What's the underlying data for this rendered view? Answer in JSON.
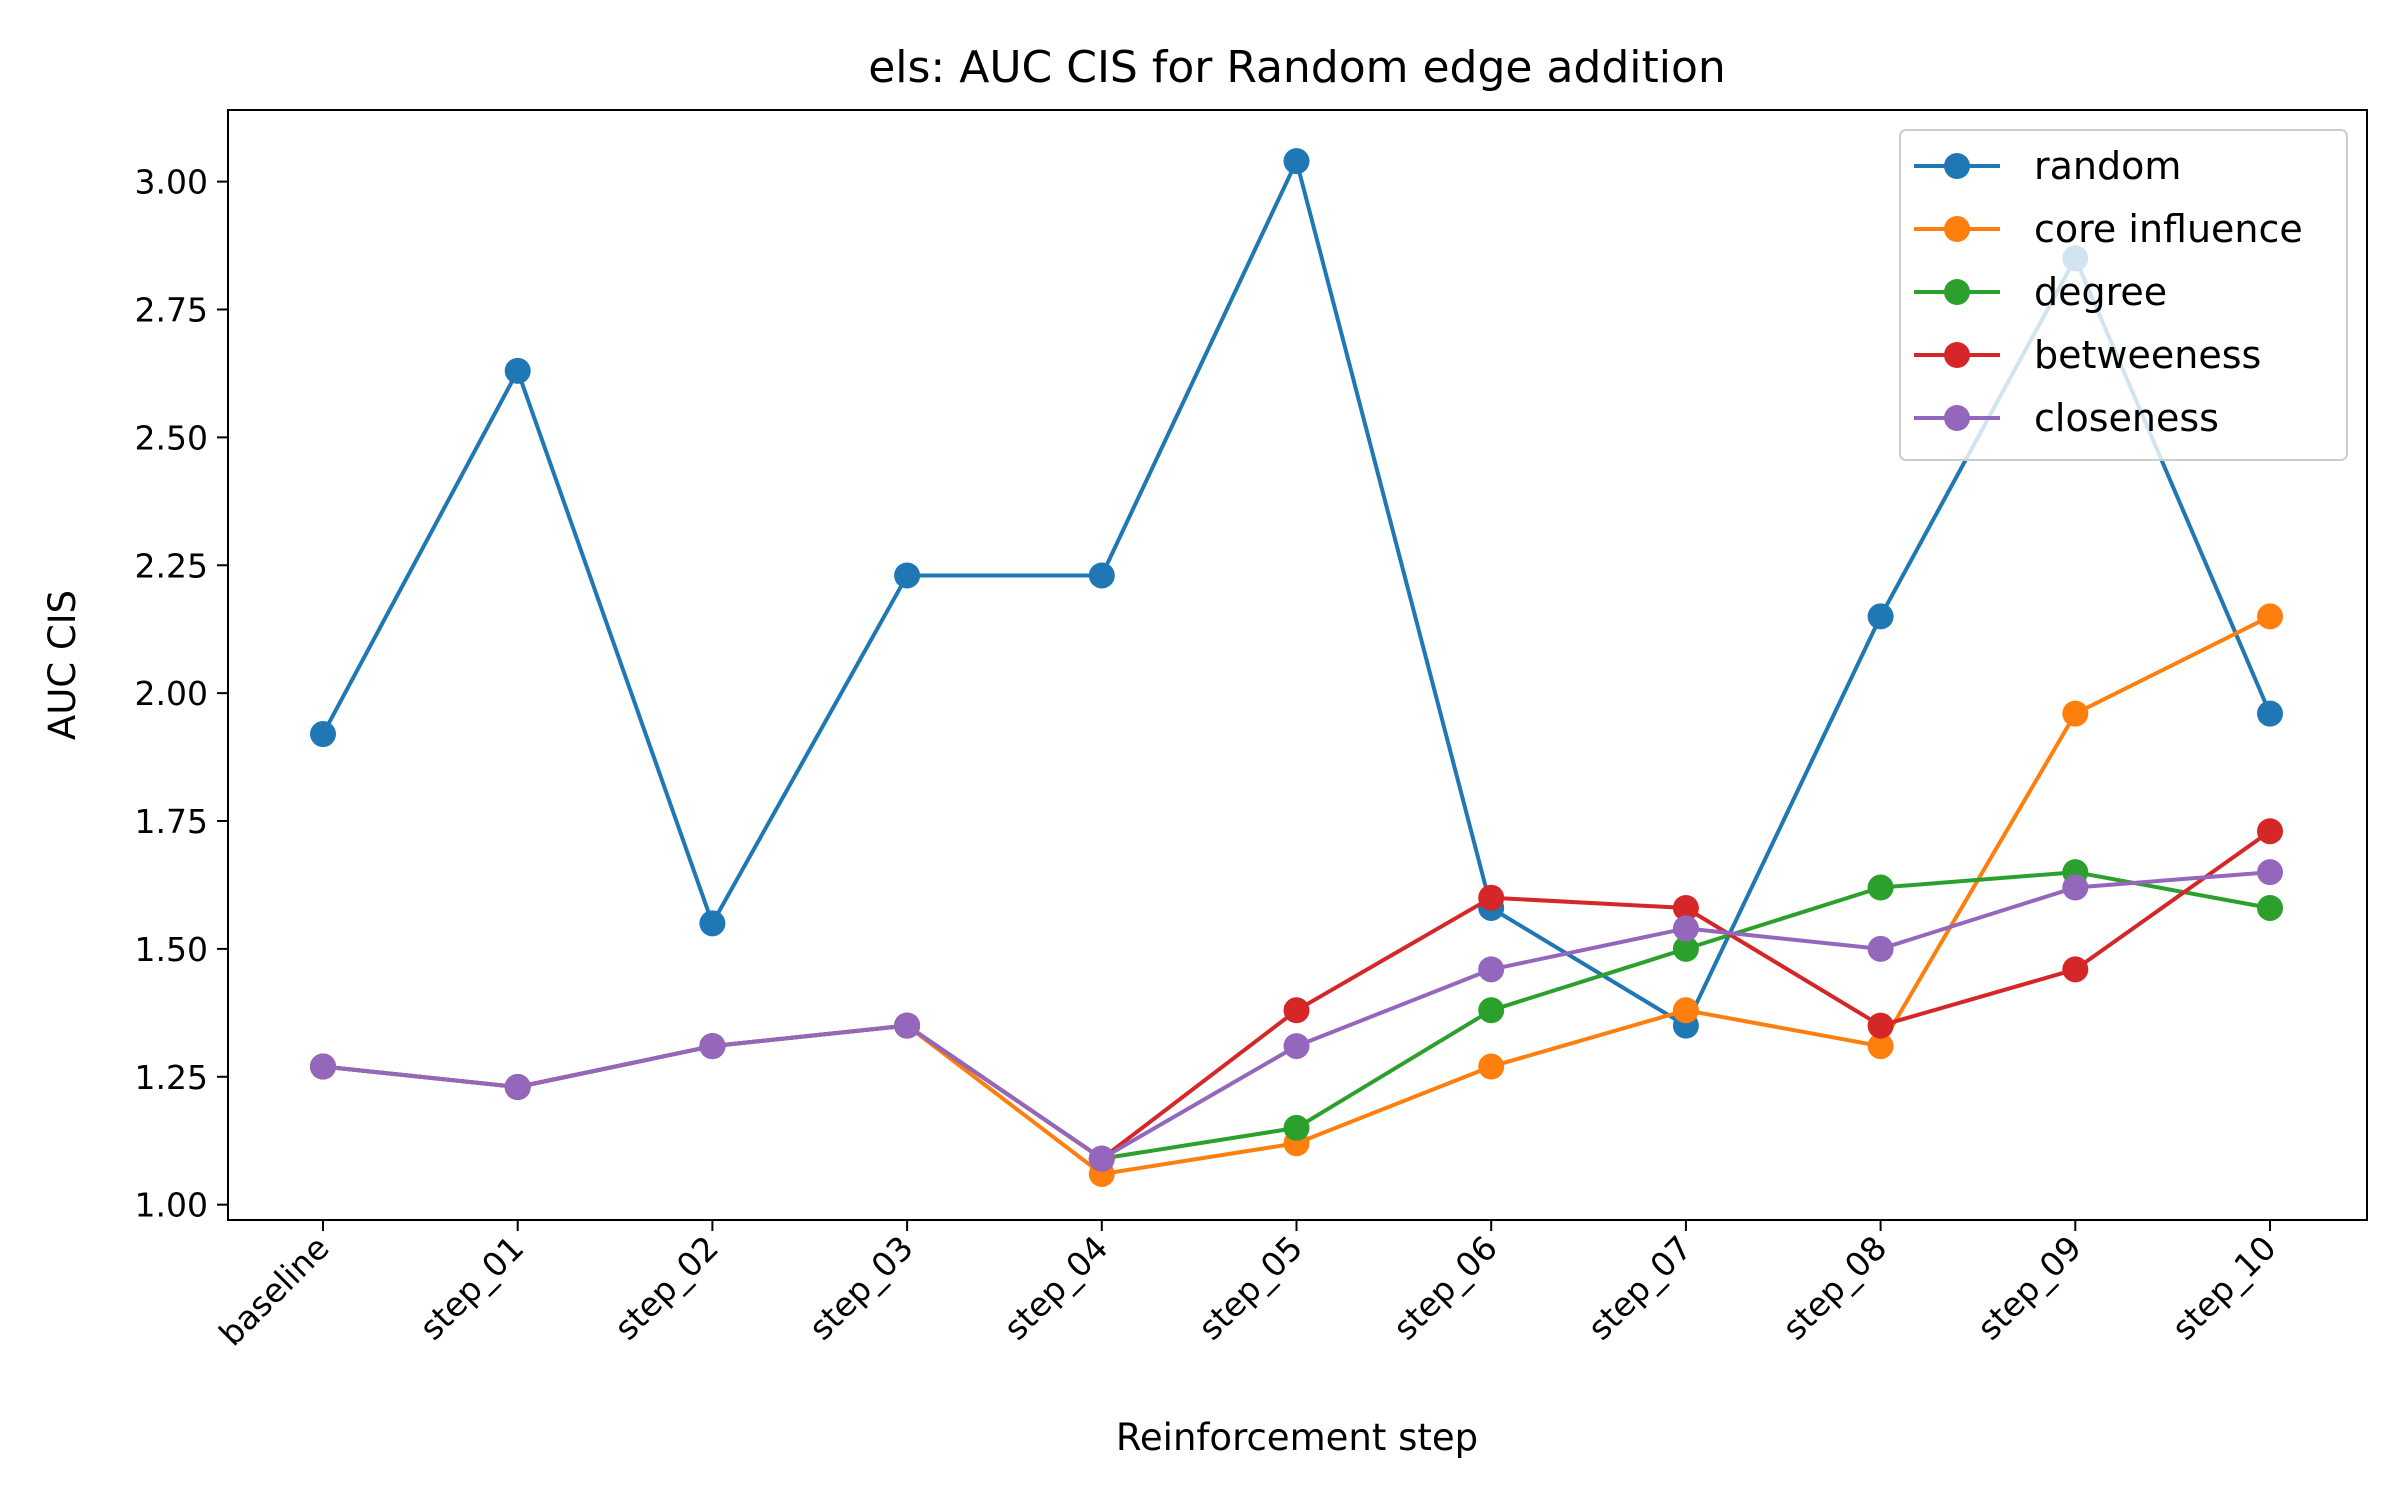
{
  "chart_data": {
    "type": "line",
    "title": "els: AUC CIS for Random edge addition",
    "xlabel": "Reinforcement step",
    "ylabel": "AUC CIS",
    "categories": [
      "baseline",
      "step_01",
      "step_02",
      "step_03",
      "step_04",
      "step_05",
      "step_06",
      "step_07",
      "step_08",
      "step_09",
      "step_10"
    ],
    "ylim": [
      0.97,
      3.14
    ],
    "yticks": [
      "1.00",
      "1.25",
      "1.50",
      "1.75",
      "2.00",
      "2.25",
      "2.50",
      "2.75",
      "3.00"
    ],
    "grid": false,
    "legend_position": "top-right",
    "series": [
      {
        "name": "random",
        "color": "#1f77b4",
        "values": [
          1.92,
          2.63,
          1.55,
          2.23,
          2.23,
          3.04,
          1.58,
          1.35,
          2.15,
          2.85,
          1.96
        ]
      },
      {
        "name": "core influence",
        "color": "#ff7f0e",
        "values": [
          1.27,
          1.23,
          1.31,
          1.35,
          1.06,
          1.12,
          1.27,
          1.38,
          1.31,
          1.96,
          2.15
        ]
      },
      {
        "name": "degree",
        "color": "#2ca02c",
        "values": [
          1.27,
          1.23,
          1.31,
          1.35,
          1.09,
          1.15,
          1.38,
          1.5,
          1.62,
          1.65,
          1.58
        ]
      },
      {
        "name": "betweeness",
        "color": "#d62728",
        "values": [
          1.27,
          1.23,
          1.31,
          1.35,
          1.09,
          1.38,
          1.6,
          1.58,
          1.35,
          1.46,
          1.73
        ]
      },
      {
        "name": "closeness",
        "color": "#9467bd",
        "values": [
          1.27,
          1.23,
          1.31,
          1.35,
          1.09,
          1.31,
          1.46,
          1.54,
          1.5,
          1.62,
          1.65
        ]
      }
    ]
  }
}
